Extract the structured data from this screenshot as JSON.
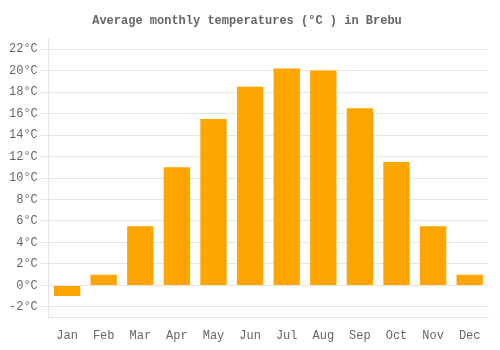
{
  "chart_data": {
    "type": "bar",
    "title": "Average monthly temperatures (°C ) in Brebu",
    "categories": [
      "Jan",
      "Feb",
      "Mar",
      "Apr",
      "May",
      "Jun",
      "Jul",
      "Aug",
      "Sep",
      "Oct",
      "Nov",
      "Dec"
    ],
    "values": [
      -1.0,
      1.0,
      5.5,
      11.0,
      15.5,
      18.5,
      20.2,
      20.0,
      16.5,
      11.5,
      5.5,
      1.0
    ],
    "color": "#FFA500",
    "ylim": [
      -3,
      23
    ],
    "yticks": [
      {
        "value": -2,
        "label": "-2°C"
      },
      {
        "value": 0,
        "label": "0°C"
      },
      {
        "value": 2,
        "label": "2°C"
      },
      {
        "value": 4,
        "label": "4°C"
      },
      {
        "value": 6,
        "label": "6°C"
      },
      {
        "value": 8,
        "label": "8°C"
      },
      {
        "value": 10,
        "label": "10°C"
      },
      {
        "value": 12,
        "label": "12°C"
      },
      {
        "value": 14,
        "label": "14°C"
      },
      {
        "value": 16,
        "label": "16°C"
      },
      {
        "value": 18,
        "label": "18°C"
      },
      {
        "value": 20,
        "label": "20°C"
      },
      {
        "value": 22,
        "label": "22°C"
      }
    ],
    "grid": true
  }
}
